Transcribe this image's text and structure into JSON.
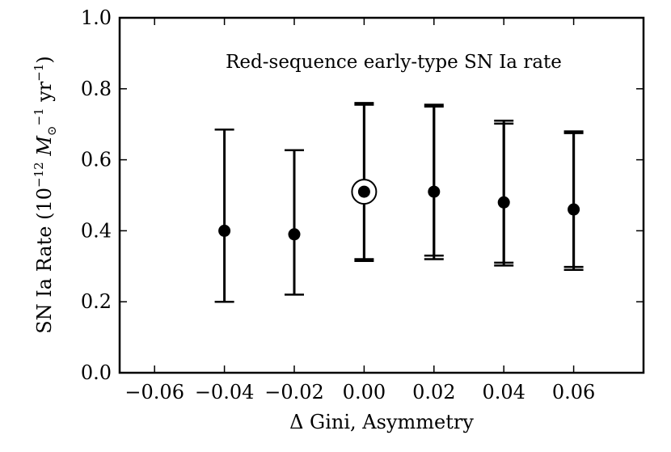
{
  "chart_data": {
    "type": "scatter",
    "annotation": "Red-sequence early-type SN Ia rate",
    "xlabel": "Δ Gini, Asymmetry",
    "ylabel": {
      "main": "SN Ia Rate (10",
      "exp1": "−12",
      "mid": " M",
      "sub": "⊙",
      "exp2": "−1",
      "mid2": " yr",
      "exp3": "−1",
      "end": ")"
    },
    "xlim": [
      -0.07,
      0.08
    ],
    "ylim": [
      0.0,
      1.0
    ],
    "xticks": [
      -0.06,
      -0.04,
      -0.02,
      0.0,
      0.02,
      0.04,
      0.06
    ],
    "xtick_labels": [
      "−0.06",
      "−0.04",
      "−0.02",
      "0.00",
      "0.02",
      "0.04",
      "0.06"
    ],
    "yticks": [
      0.0,
      0.2,
      0.4,
      0.6,
      0.8,
      1.0
    ],
    "ytick_labels": [
      "0.0",
      "0.2",
      "0.4",
      "0.6",
      "0.8",
      "1.0"
    ],
    "grid": false,
    "marker_color": "#000000",
    "series": [
      {
        "x": [
          -0.04,
          -0.02,
          0.0,
          0.02,
          0.04,
          0.06
        ],
        "y": [
          0.4,
          0.39,
          0.51,
          0.51,
          0.48,
          0.46
        ],
        "errors": [
          [
            [
              0.2,
              0.685
            ]
          ],
          [
            [
              0.22,
              0.627
            ]
          ],
          [
            [
              0.32,
              0.76
            ],
            [
              0.315,
              0.755
            ]
          ],
          [
            [
              0.32,
              0.75
            ],
            [
              0.33,
              0.755
            ]
          ],
          [
            [
              0.31,
              0.71
            ],
            [
              0.302,
              0.702
            ]
          ],
          [
            [
              0.29,
              0.68
            ],
            [
              0.298,
              0.675
            ]
          ]
        ],
        "highlighted_index": 2
      }
    ]
  }
}
